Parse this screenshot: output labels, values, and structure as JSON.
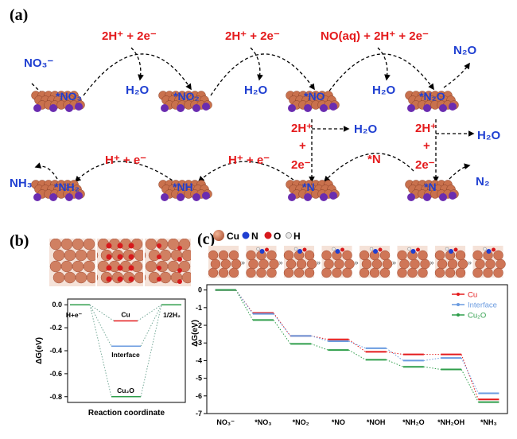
{
  "panel_a": {
    "label": "(a)",
    "top_row": {
      "species": [
        "NO₃⁻",
        "*NO₃",
        "H₂O",
        "*NO₂",
        "H₂O",
        "*NO",
        "H₂O",
        "*N₂O",
        "N₂O"
      ],
      "equations": [
        "2H⁺ + 2e⁻",
        "2H⁺ + 2e⁻",
        "NO(aq) + 2H⁺ + 2e⁻"
      ]
    },
    "middle": {
      "left_eq": [
        "2H⁺",
        "+",
        "2e⁻"
      ],
      "left_product": "H₂O",
      "right_eq": [
        "2H⁺",
        "+",
        "2e⁻"
      ],
      "right_product": "H₂O",
      "center_species": "*N"
    },
    "bottom_row": {
      "species": [
        "NH₃",
        "*NH₂",
        "*NH",
        "*N",
        "*N",
        "N₂"
      ],
      "equations": [
        "H⁺ + e⁻",
        "H⁺ + e⁻"
      ]
    }
  },
  "panel_b": {
    "label": "(b)",
    "chart_data": {
      "type": "energy-level diagram",
      "ylabel": "ΔG(eV)",
      "xlabel": "Reaction coordinate",
      "ylim": [
        -0.85,
        0.05
      ],
      "yticks": [
        "0.0",
        "-0.2",
        "-0.4",
        "-0.6",
        "-0.8"
      ],
      "levels": [
        {
          "name": "H+e⁻",
          "value": 0.0,
          "color": "#2e9e4a"
        },
        {
          "name": "Cu",
          "value": -0.14,
          "color": "#e41a1c"
        },
        {
          "name": "Interface",
          "value": -0.36,
          "color": "#6a9be0"
        },
        {
          "name": "Cu₂O",
          "value": -0.8,
          "color": "#2e9e4a"
        },
        {
          "name": "1/2H₂",
          "value": 0.0,
          "color": "#2e9e4a"
        }
      ]
    }
  },
  "panel_c": {
    "label": "(c)",
    "atom_legend": [
      "Cu",
      "N",
      "O",
      "H"
    ],
    "chart_data": {
      "type": "line",
      "ylabel": "ΔG(eV)",
      "ylim": [
        -7,
        0.3
      ],
      "yticks": [
        "0",
        "-1",
        "-2",
        "-3",
        "-4",
        "-5",
        "-6",
        "-7"
      ],
      "categories": [
        "NO₃⁻",
        "*NO₃",
        "*NO₂",
        "*NO",
        "*NOH",
        "*NH₂O",
        "*NH₂OH",
        "*NH₃"
      ],
      "series": [
        {
          "name": "Cu",
          "color": "#e41a1c",
          "values": [
            0,
            -1.3,
            -2.6,
            -2.8,
            -3.5,
            -3.65,
            -3.65,
            -6.2
          ]
        },
        {
          "name": "Interface",
          "color": "#6a9be0",
          "values": [
            0,
            -1.35,
            -2.6,
            -2.9,
            -3.3,
            -4.0,
            -3.85,
            -5.85
          ]
        },
        {
          "name": "Cu₂O",
          "color": "#2e9e4a",
          "values": [
            0,
            -1.7,
            -3.05,
            -3.4,
            -3.95,
            -4.35,
            -4.5,
            -6.35
          ]
        }
      ]
    }
  }
}
